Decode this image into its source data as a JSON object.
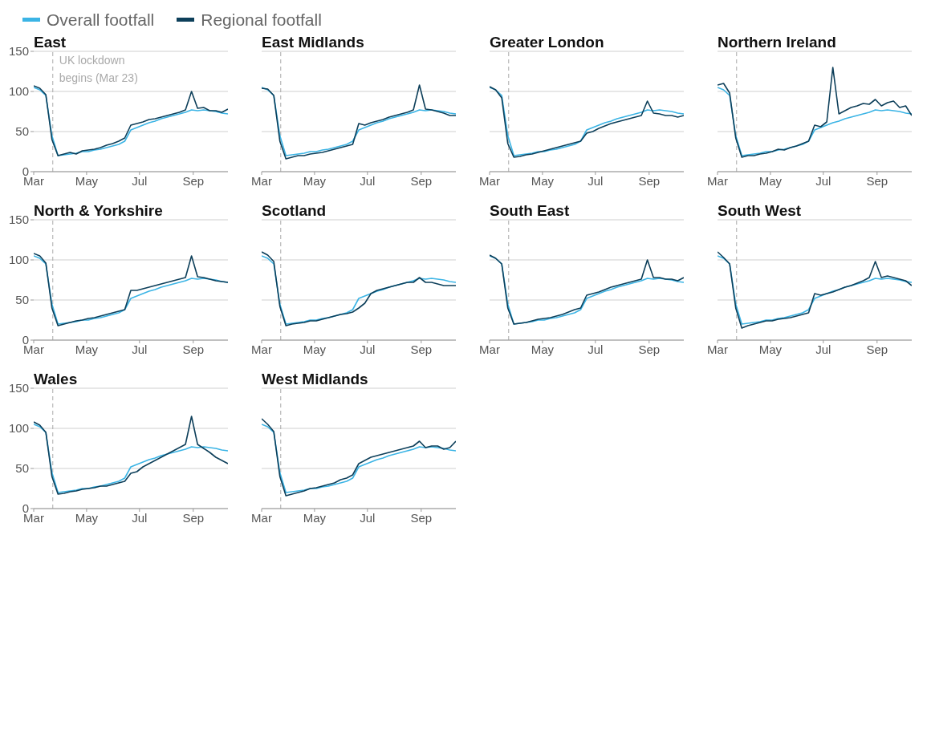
{
  "chart_data": [
    {
      "type": "line",
      "title": "East",
      "legend": "top",
      "grid": "y",
      "x": [
        "--03-01",
        "--03-08",
        "--03-15",
        "--03-22",
        "--03-29",
        "--04-05",
        "--04-12",
        "--04-19",
        "--04-26",
        "--05-03",
        "--05-10",
        "--05-17",
        "--05-24",
        "--05-31",
        "--06-07",
        "--06-14",
        "--06-21",
        "--06-28",
        "--07-05",
        "--07-12",
        "--07-19",
        "--07-26",
        "--08-02",
        "--08-09",
        "--08-16",
        "--08-23",
        "--08-30",
        "--09-06",
        "--09-13",
        "--09-20",
        "--09-27",
        "--10-04",
        "--10-11"
      ],
      "xlim": [
        "--03-01",
        "--10-11"
      ],
      "xticks": [
        {
          "value": "--03-01",
          "label": "Mar"
        },
        {
          "value": "--05-01",
          "label": "May"
        },
        {
          "value": "--07-01",
          "label": "Jul"
        },
        {
          "value": "--09-01",
          "label": "Sep"
        }
      ],
      "ylim": [
        0,
        150
      ],
      "yticks": [
        0,
        50,
        100,
        150
      ],
      "ref_lines": [
        {
          "axis": "x",
          "value": "--03-23",
          "label": "UK lockdown begins (Mar 23)",
          "color": "#aaaaaa",
          "line_style": "dashed"
        }
      ],
      "series": [
        {
          "name": "Overall footfall",
          "color": "#3bb4e5",
          "values": [
            105,
            102,
            95,
            45,
            20,
            21,
            22,
            23,
            25,
            25,
            27,
            28,
            30,
            32,
            34,
            38,
            52,
            55,
            58,
            61,
            63,
            66,
            68,
            70,
            72,
            74,
            77,
            76,
            77,
            76,
            75,
            73,
            72
          ]
        },
        {
          "name": "Regional footfall",
          "color": "#0d3f5a",
          "values": [
            107,
            104,
            96,
            40,
            20,
            22,
            24,
            22,
            26,
            27,
            28,
            30,
            33,
            35,
            38,
            42,
            58,
            60,
            62,
            65,
            66,
            68,
            70,
            72,
            74,
            77,
            100,
            79,
            80,
            76,
            76,
            74,
            78
          ]
        }
      ]
    },
    {
      "type": "line",
      "title": "East Midlands",
      "grid": "y",
      "tick_labels": "x",
      "x": [
        "--03-01",
        "--03-08",
        "--03-15",
        "--03-22",
        "--03-29",
        "--04-05",
        "--04-12",
        "--04-19",
        "--04-26",
        "--05-03",
        "--05-10",
        "--05-17",
        "--05-24",
        "--05-31",
        "--06-07",
        "--06-14",
        "--06-21",
        "--06-28",
        "--07-05",
        "--07-12",
        "--07-19",
        "--07-26",
        "--08-02",
        "--08-09",
        "--08-16",
        "--08-23",
        "--08-30",
        "--09-06",
        "--09-13",
        "--09-20",
        "--09-27",
        "--10-04",
        "--10-11"
      ],
      "xlim": [
        "--03-01",
        "--10-11"
      ],
      "xticks": [
        {
          "value": "--03-01",
          "label": "Mar"
        },
        {
          "value": "--05-01",
          "label": "May"
        },
        {
          "value": "--07-01",
          "label": "Jul"
        },
        {
          "value": "--09-01",
          "label": "Sep"
        }
      ],
      "ylim": [
        0,
        150
      ],
      "yticks": [
        0,
        50,
        100,
        150
      ],
      "ref_lines": [
        {
          "axis": "x",
          "value": "--03-23",
          "color": "#aaaaaa",
          "line_style": "dashed"
        }
      ],
      "series": [
        {
          "color": "#3bb4e5",
          "values": [
            105,
            102,
            95,
            45,
            20,
            21,
            22,
            23,
            25,
            25,
            27,
            28,
            30,
            32,
            34,
            38,
            52,
            55,
            58,
            61,
            63,
            66,
            68,
            70,
            72,
            74,
            77,
            76,
            77,
            76,
            75,
            73,
            72
          ]
        },
        {
          "color": "#0d3f5a",
          "values": [
            104,
            103,
            95,
            38,
            16,
            18,
            20,
            20,
            22,
            23,
            24,
            26,
            28,
            30,
            32,
            34,
            60,
            58,
            61,
            63,
            65,
            68,
            70,
            72,
            74,
            77,
            108,
            78,
            77,
            75,
            73,
            70,
            70
          ]
        }
      ]
    },
    {
      "type": "line",
      "title": "Greater London",
      "grid": "y",
      "tick_labels": "x",
      "x": [
        "--03-01",
        "--03-08",
        "--03-15",
        "--03-22",
        "--03-29",
        "--04-05",
        "--04-12",
        "--04-19",
        "--04-26",
        "--05-03",
        "--05-10",
        "--05-17",
        "--05-24",
        "--05-31",
        "--06-07",
        "--06-14",
        "--06-21",
        "--06-28",
        "--07-05",
        "--07-12",
        "--07-19",
        "--07-26",
        "--08-02",
        "--08-09",
        "--08-16",
        "--08-23",
        "--08-30",
        "--09-06",
        "--09-13",
        "--09-20",
        "--09-27",
        "--10-04",
        "--10-11"
      ],
      "xlim": [
        "--03-01",
        "--10-11"
      ],
      "xticks": [
        {
          "value": "--03-01",
          "label": "Mar"
        },
        {
          "value": "--05-01",
          "label": "May"
        },
        {
          "value": "--07-01",
          "label": "Jul"
        },
        {
          "value": "--09-01",
          "label": "Sep"
        }
      ],
      "ylim": [
        0,
        150
      ],
      "yticks": [
        0,
        50,
        100,
        150
      ],
      "ref_lines": [
        {
          "axis": "x",
          "value": "--03-23",
          "color": "#aaaaaa",
          "line_style": "dashed"
        }
      ],
      "series": [
        {
          "color": "#3bb4e5",
          "values": [
            105,
            102,
            95,
            45,
            20,
            21,
            22,
            23,
            25,
            25,
            27,
            28,
            30,
            32,
            34,
            38,
            52,
            55,
            58,
            61,
            63,
            66,
            68,
            70,
            72,
            74,
            77,
            76,
            77,
            76,
            75,
            73,
            72
          ]
        },
        {
          "color": "#0d3f5a",
          "values": [
            106,
            102,
            92,
            35,
            18,
            19,
            21,
            22,
            24,
            26,
            28,
            30,
            32,
            34,
            36,
            38,
            48,
            50,
            54,
            57,
            60,
            62,
            64,
            66,
            68,
            70,
            88,
            73,
            72,
            70,
            70,
            68,
            70
          ]
        }
      ]
    },
    {
      "type": "line",
      "title": "Northern Ireland",
      "grid": "y",
      "tick_labels": "x",
      "x": [
        "--03-01",
        "--03-08",
        "--03-15",
        "--03-22",
        "--03-29",
        "--04-05",
        "--04-12",
        "--04-19",
        "--04-26",
        "--05-03",
        "--05-10",
        "--05-17",
        "--05-24",
        "--05-31",
        "--06-07",
        "--06-14",
        "--06-21",
        "--06-28",
        "--07-05",
        "--07-12",
        "--07-19",
        "--07-26",
        "--08-02",
        "--08-09",
        "--08-16",
        "--08-23",
        "--08-30",
        "--09-06",
        "--09-13",
        "--09-20",
        "--09-27",
        "--10-04",
        "--10-11"
      ],
      "xlim": [
        "--03-01",
        "--10-11"
      ],
      "xticks": [
        {
          "value": "--03-01",
          "label": "Mar"
        },
        {
          "value": "--05-01",
          "label": "May"
        },
        {
          "value": "--07-01",
          "label": "Jul"
        },
        {
          "value": "--09-01",
          "label": "Sep"
        }
      ],
      "ylim": [
        0,
        150
      ],
      "yticks": [
        0,
        50,
        100,
        150
      ],
      "ref_lines": [
        {
          "axis": "x",
          "value": "--03-23",
          "color": "#aaaaaa",
          "line_style": "dashed"
        }
      ],
      "series": [
        {
          "color": "#3bb4e5",
          "values": [
            105,
            102,
            95,
            45,
            20,
            21,
            22,
            23,
            25,
            25,
            27,
            28,
            30,
            32,
            34,
            38,
            52,
            55,
            58,
            61,
            63,
            66,
            68,
            70,
            72,
            74,
            77,
            76,
            77,
            76,
            75,
            73,
            72
          ]
        },
        {
          "color": "#0d3f5a",
          "values": [
            108,
            110,
            98,
            42,
            18,
            20,
            20,
            22,
            23,
            25,
            28,
            27,
            30,
            32,
            35,
            38,
            58,
            56,
            62,
            130,
            72,
            76,
            80,
            82,
            85,
            84,
            90,
            82,
            86,
            88,
            80,
            82,
            70
          ]
        }
      ]
    },
    {
      "type": "line",
      "title": "North & Yorkshire",
      "grid": "y",
      "x": [
        "--03-01",
        "--03-08",
        "--03-15",
        "--03-22",
        "--03-29",
        "--04-05",
        "--04-12",
        "--04-19",
        "--04-26",
        "--05-03",
        "--05-10",
        "--05-17",
        "--05-24",
        "--05-31",
        "--06-07",
        "--06-14",
        "--06-21",
        "--06-28",
        "--07-05",
        "--07-12",
        "--07-19",
        "--07-26",
        "--08-02",
        "--08-09",
        "--08-16",
        "--08-23",
        "--08-30",
        "--09-06",
        "--09-13",
        "--09-20",
        "--09-27",
        "--10-04",
        "--10-11"
      ],
      "xlim": [
        "--03-01",
        "--10-11"
      ],
      "xticks": [
        {
          "value": "--03-01",
          "label": "Mar"
        },
        {
          "value": "--05-01",
          "label": "May"
        },
        {
          "value": "--07-01",
          "label": "Jul"
        },
        {
          "value": "--09-01",
          "label": "Sep"
        }
      ],
      "ylim": [
        0,
        150
      ],
      "yticks": [
        0,
        50,
        100,
        150
      ],
      "ref_lines": [
        {
          "axis": "x",
          "value": "--03-23",
          "color": "#aaaaaa",
          "line_style": "dashed"
        }
      ],
      "series": [
        {
          "color": "#3bb4e5",
          "values": [
            105,
            102,
            95,
            45,
            20,
            21,
            22,
            23,
            25,
            25,
            27,
            28,
            30,
            32,
            34,
            38,
            52,
            55,
            58,
            61,
            63,
            66,
            68,
            70,
            72,
            74,
            77,
            76,
            77,
            76,
            75,
            73,
            72
          ]
        },
        {
          "color": "#0d3f5a",
          "values": [
            108,
            105,
            96,
            40,
            18,
            20,
            22,
            24,
            25,
            27,
            28,
            30,
            32,
            34,
            36,
            38,
            62,
            62,
            64,
            66,
            68,
            70,
            72,
            74,
            76,
            78,
            105,
            79,
            78,
            76,
            74,
            73,
            72
          ]
        }
      ]
    },
    {
      "type": "line",
      "title": "Scotland",
      "grid": "y",
      "tick_labels": "x",
      "x": [
        "--03-01",
        "--03-08",
        "--03-15",
        "--03-22",
        "--03-29",
        "--04-05",
        "--04-12",
        "--04-19",
        "--04-26",
        "--05-03",
        "--05-10",
        "--05-17",
        "--05-24",
        "--05-31",
        "--06-07",
        "--06-14",
        "--06-21",
        "--06-28",
        "--07-05",
        "--07-12",
        "--07-19",
        "--07-26",
        "--08-02",
        "--08-09",
        "--08-16",
        "--08-23",
        "--08-30",
        "--09-06",
        "--09-13",
        "--09-20",
        "--09-27",
        "--10-04",
        "--10-11"
      ],
      "xlim": [
        "--03-01",
        "--10-11"
      ],
      "xticks": [
        {
          "value": "--03-01",
          "label": "Mar"
        },
        {
          "value": "--05-01",
          "label": "May"
        },
        {
          "value": "--07-01",
          "label": "Jul"
        },
        {
          "value": "--09-01",
          "label": "Sep"
        }
      ],
      "ylim": [
        0,
        150
      ],
      "yticks": [
        0,
        50,
        100,
        150
      ],
      "ref_lines": [
        {
          "axis": "x",
          "value": "--03-23",
          "color": "#aaaaaa",
          "line_style": "dashed"
        }
      ],
      "series": [
        {
          "color": "#3bb4e5",
          "values": [
            105,
            102,
            95,
            45,
            20,
            21,
            22,
            23,
            25,
            25,
            27,
            28,
            30,
            32,
            34,
            38,
            52,
            55,
            58,
            61,
            63,
            66,
            68,
            70,
            72,
            74,
            77,
            76,
            77,
            76,
            75,
            73,
            72
          ]
        },
        {
          "color": "#0d3f5a",
          "values": [
            110,
            106,
            98,
            42,
            18,
            20,
            21,
            22,
            24,
            24,
            26,
            28,
            30,
            32,
            33,
            35,
            40,
            46,
            58,
            62,
            64,
            66,
            68,
            70,
            72,
            72,
            78,
            72,
            72,
            70,
            68,
            68,
            68
          ]
        }
      ]
    },
    {
      "type": "line",
      "title": "South East",
      "grid": "y",
      "tick_labels": "x",
      "x": [
        "--03-01",
        "--03-08",
        "--03-15",
        "--03-22",
        "--03-29",
        "--04-05",
        "--04-12",
        "--04-19",
        "--04-26",
        "--05-03",
        "--05-10",
        "--05-17",
        "--05-24",
        "--05-31",
        "--06-07",
        "--06-14",
        "--06-21",
        "--06-28",
        "--07-05",
        "--07-12",
        "--07-19",
        "--07-26",
        "--08-02",
        "--08-09",
        "--08-16",
        "--08-23",
        "--08-30",
        "--09-06",
        "--09-13",
        "--09-20",
        "--09-27",
        "--10-04",
        "--10-11"
      ],
      "xlim": [
        "--03-01",
        "--10-11"
      ],
      "xticks": [
        {
          "value": "--03-01",
          "label": "Mar"
        },
        {
          "value": "--05-01",
          "label": "May"
        },
        {
          "value": "--07-01",
          "label": "Jul"
        },
        {
          "value": "--09-01",
          "label": "Sep"
        }
      ],
      "ylim": [
        0,
        150
      ],
      "yticks": [
        0,
        50,
        100,
        150
      ],
      "ref_lines": [
        {
          "axis": "x",
          "value": "--03-23",
          "color": "#aaaaaa",
          "line_style": "dashed"
        }
      ],
      "series": [
        {
          "color": "#3bb4e5",
          "values": [
            105,
            102,
            95,
            45,
            20,
            21,
            22,
            23,
            25,
            25,
            27,
            28,
            30,
            32,
            34,
            38,
            52,
            55,
            58,
            61,
            63,
            66,
            68,
            70,
            72,
            74,
            77,
            76,
            77,
            76,
            75,
            73,
            72
          ]
        },
        {
          "color": "#0d3f5a",
          "values": [
            106,
            102,
            95,
            40,
            20,
            21,
            22,
            24,
            26,
            27,
            28,
            30,
            32,
            35,
            38,
            40,
            56,
            58,
            60,
            63,
            66,
            68,
            70,
            72,
            74,
            76,
            100,
            78,
            78,
            76,
            76,
            74,
            78
          ]
        }
      ]
    },
    {
      "type": "line",
      "title": "South West",
      "grid": "y",
      "tick_labels": "x",
      "x": [
        "--03-01",
        "--03-08",
        "--03-15",
        "--03-22",
        "--03-29",
        "--04-05",
        "--04-12",
        "--04-19",
        "--04-26",
        "--05-03",
        "--05-10",
        "--05-17",
        "--05-24",
        "--05-31",
        "--06-07",
        "--06-14",
        "--06-21",
        "--06-28",
        "--07-05",
        "--07-12",
        "--07-19",
        "--07-26",
        "--08-02",
        "--08-09",
        "--08-16",
        "--08-23",
        "--08-30",
        "--09-06",
        "--09-13",
        "--09-20",
        "--09-27",
        "--10-04",
        "--10-11"
      ],
      "xlim": [
        "--03-01",
        "--10-11"
      ],
      "xticks": [
        {
          "value": "--03-01",
          "label": "Mar"
        },
        {
          "value": "--05-01",
          "label": "May"
        },
        {
          "value": "--07-01",
          "label": "Jul"
        },
        {
          "value": "--09-01",
          "label": "Sep"
        }
      ],
      "ylim": [
        0,
        150
      ],
      "yticks": [
        0,
        50,
        100,
        150
      ],
      "ref_lines": [
        {
          "axis": "x",
          "value": "--03-23",
          "color": "#aaaaaa",
          "line_style": "dashed"
        }
      ],
      "series": [
        {
          "color": "#3bb4e5",
          "values": [
            105,
            102,
            95,
            45,
            20,
            21,
            22,
            23,
            25,
            25,
            27,
            28,
            30,
            32,
            34,
            38,
            52,
            55,
            58,
            61,
            63,
            66,
            68,
            70,
            72,
            74,
            77,
            76,
            77,
            76,
            75,
            73,
            72
          ]
        },
        {
          "color": "#0d3f5a",
          "values": [
            110,
            103,
            95,
            40,
            15,
            18,
            20,
            22,
            24,
            24,
            26,
            27,
            28,
            30,
            32,
            34,
            58,
            56,
            58,
            60,
            63,
            66,
            68,
            71,
            74,
            78,
            98,
            78,
            80,
            78,
            76,
            74,
            68
          ]
        }
      ]
    },
    {
      "type": "line",
      "title": "Wales",
      "grid": "y",
      "x": [
        "--03-01",
        "--03-08",
        "--03-15",
        "--03-22",
        "--03-29",
        "--04-05",
        "--04-12",
        "--04-19",
        "--04-26",
        "--05-03",
        "--05-10",
        "--05-17",
        "--05-24",
        "--05-31",
        "--06-07",
        "--06-14",
        "--06-21",
        "--06-28",
        "--07-05",
        "--07-12",
        "--07-19",
        "--07-26",
        "--08-02",
        "--08-09",
        "--08-16",
        "--08-23",
        "--08-30",
        "--09-06",
        "--09-13",
        "--09-20",
        "--09-27",
        "--10-04",
        "--10-11"
      ],
      "xlim": [
        "--03-01",
        "--10-11"
      ],
      "xticks": [
        {
          "value": "--03-01",
          "label": "Mar"
        },
        {
          "value": "--05-01",
          "label": "May"
        },
        {
          "value": "--07-01",
          "label": "Jul"
        },
        {
          "value": "--09-01",
          "label": "Sep"
        }
      ],
      "ylim": [
        0,
        150
      ],
      "yticks": [
        0,
        50,
        100,
        150
      ],
      "ref_lines": [
        {
          "axis": "x",
          "value": "--03-23",
          "color": "#aaaaaa",
          "line_style": "dashed"
        }
      ],
      "series": [
        {
          "color": "#3bb4e5",
          "values": [
            105,
            102,
            95,
            45,
            20,
            21,
            22,
            23,
            25,
            25,
            27,
            28,
            30,
            32,
            34,
            38,
            52,
            55,
            58,
            61,
            63,
            66,
            68,
            70,
            72,
            74,
            77,
            76,
            77,
            76,
            75,
            73,
            72
          ]
        },
        {
          "color": "#0d3f5a",
          "values": [
            108,
            104,
            95,
            40,
            18,
            19,
            21,
            22,
            24,
            25,
            26,
            28,
            28,
            30,
            32,
            34,
            44,
            46,
            52,
            56,
            60,
            64,
            68,
            72,
            76,
            80,
            115,
            80,
            75,
            70,
            64,
            60,
            56
          ]
        }
      ]
    },
    {
      "type": "line",
      "title": "West Midlands",
      "grid": "y",
      "tick_labels": "x",
      "x": [
        "--03-01",
        "--03-08",
        "--03-15",
        "--03-22",
        "--03-29",
        "--04-05",
        "--04-12",
        "--04-19",
        "--04-26",
        "--05-03",
        "--05-10",
        "--05-17",
        "--05-24",
        "--05-31",
        "--06-07",
        "--06-14",
        "--06-21",
        "--06-28",
        "--07-05",
        "--07-12",
        "--07-19",
        "--07-26",
        "--08-02",
        "--08-09",
        "--08-16",
        "--08-23",
        "--08-30",
        "--09-06",
        "--09-13",
        "--09-20",
        "--09-27",
        "--10-04",
        "--10-11"
      ],
      "xlim": [
        "--03-01",
        "--10-11"
      ],
      "xticks": [
        {
          "value": "--03-01",
          "label": "Mar"
        },
        {
          "value": "--05-01",
          "label": "May"
        },
        {
          "value": "--07-01",
          "label": "Jul"
        },
        {
          "value": "--09-01",
          "label": "Sep"
        }
      ],
      "ylim": [
        0,
        150
      ],
      "yticks": [
        0,
        50,
        100,
        150
      ],
      "ref_lines": [
        {
          "axis": "x",
          "value": "--03-23",
          "color": "#aaaaaa",
          "line_style": "dashed"
        }
      ],
      "series": [
        {
          "color": "#3bb4e5",
          "values": [
            105,
            102,
            95,
            45,
            20,
            21,
            22,
            23,
            25,
            25,
            27,
            28,
            30,
            32,
            34,
            38,
            52,
            55,
            58,
            61,
            63,
            66,
            68,
            70,
            72,
            74,
            77,
            76,
            77,
            76,
            75,
            73,
            72
          ]
        },
        {
          "color": "#0d3f5a",
          "values": [
            112,
            105,
            96,
            40,
            16,
            18,
            20,
            22,
            25,
            26,
            28,
            30,
            32,
            36,
            38,
            42,
            56,
            60,
            64,
            66,
            68,
            70,
            72,
            74,
            76,
            78,
            84,
            76,
            78,
            78,
            74,
            76,
            84
          ]
        }
      ]
    }
  ]
}
